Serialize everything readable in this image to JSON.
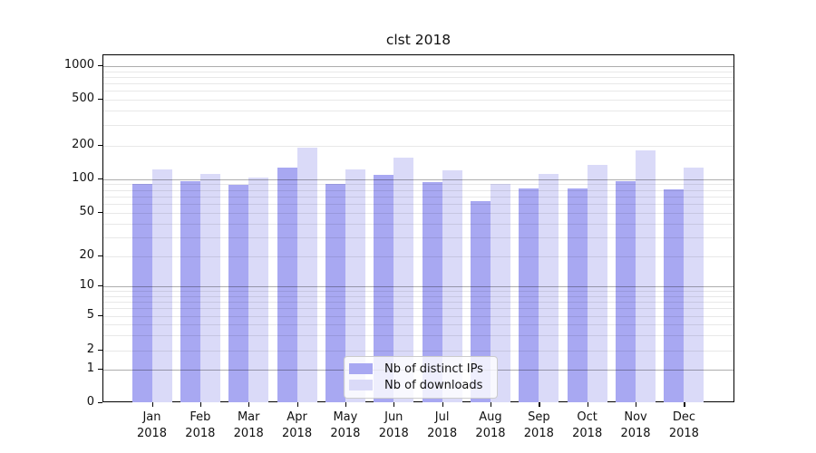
{
  "title": "clst 2018",
  "legend": {
    "items": [
      {
        "label": "Nb of distinct IPs",
        "color": "#a8a8f2"
      },
      {
        "label": "Nb of downloads",
        "color": "#dadaf8"
      }
    ]
  },
  "colors": {
    "bar_ips": "#a8a8f2",
    "bar_downloads": "#dadaf8",
    "grid_major": "rgba(0,0,0,0.32)",
    "grid_minor": "rgba(0,0,0,0.09)",
    "axis": "#000000",
    "text": "#111111"
  },
  "chart_data": {
    "type": "bar",
    "title": "clst 2018",
    "categories": [
      "Jan 2018",
      "Feb 2018",
      "Mar 2018",
      "Apr 2018",
      "May 2018",
      "Jun 2018",
      "Jul 2018",
      "Aug 2018",
      "Sep 2018",
      "Oct 2018",
      "Nov 2018",
      "Dec 2018"
    ],
    "series": [
      {
        "name": "Nb of distinct IPs",
        "color": "#a8a8f2",
        "values": [
          91,
          96,
          89,
          127,
          91,
          108,
          94,
          64,
          82,
          83,
          96,
          81
        ]
      },
      {
        "name": "Nb of downloads",
        "color": "#dadaf8",
        "values": [
          121,
          110,
          102,
          193,
          121,
          155,
          119,
          91,
          110,
          133,
          183,
          128
        ]
      }
    ],
    "yscale": "symlog",
    "ytick_values": [
      0,
      1,
      2,
      5,
      10,
      20,
      50,
      100,
      200,
      500,
      1000
    ],
    "ygrid_major_values": [
      1,
      10,
      100,
      1000
    ],
    "ylim": [
      0,
      1250
    ],
    "xlabel": "",
    "ylabel": "",
    "legend_position": "lower center",
    "grid": true
  }
}
